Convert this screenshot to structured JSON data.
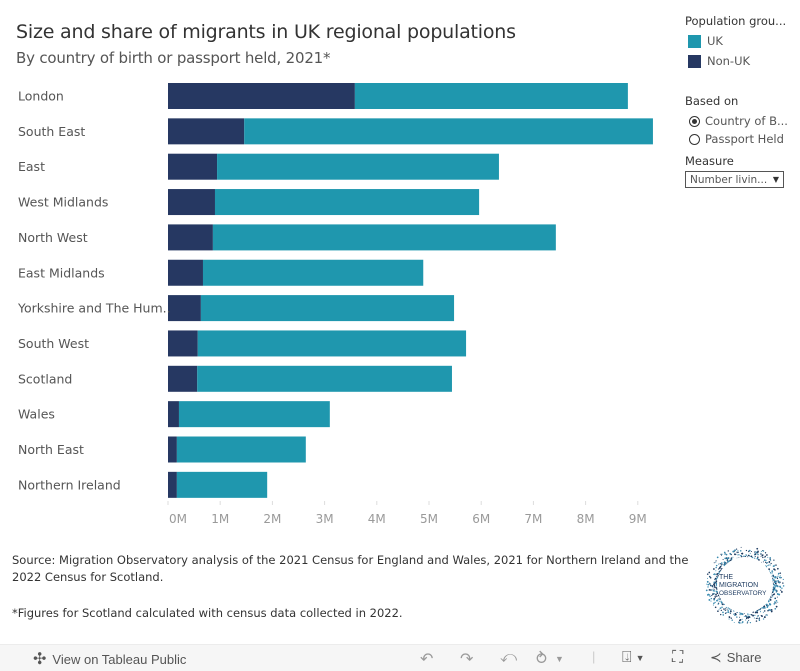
{
  "header": {
    "title": "Size and share of migrants in UK regional populations",
    "subtitle": "By country of birth or passport held, 2021*"
  },
  "legend": {
    "title": "Population grou...",
    "items": [
      {
        "label": "UK",
        "color": "#1f97ae"
      },
      {
        "label": "Non-UK",
        "color": "#263862"
      }
    ]
  },
  "based_on": {
    "title": "Based on",
    "options": [
      {
        "label": "Country of B...",
        "selected": true
      },
      {
        "label": "Passport Held",
        "selected": false
      }
    ]
  },
  "measure": {
    "title": "Measure",
    "selected": "Number livin..."
  },
  "chart_data": {
    "type": "bar",
    "orientation": "horizontal",
    "stacked": true,
    "title": "Size and share of migrants in UK regional populations",
    "subtitle": "By country of birth or passport held, 2021*",
    "xlabel": "",
    "ylabel": "",
    "xlim": [
      0,
      9.3
    ],
    "x_ticks": [
      "0M",
      "1M",
      "2M",
      "3M",
      "4M",
      "5M",
      "6M",
      "7M",
      "8M",
      "9M"
    ],
    "x_tick_values": [
      0,
      1,
      2,
      3,
      4,
      5,
      6,
      7,
      8,
      9
    ],
    "units": "millions",
    "grid": false,
    "legend_position": "right",
    "categories": [
      "London",
      "South East",
      "East",
      "West Midlands",
      "North West",
      "East Midlands",
      "Yorkshire and The Hum..",
      "South West",
      "Scotland",
      "Wales",
      "North East",
      "Northern Ireland"
    ],
    "series": [
      {
        "name": "Non-UK",
        "color": "#263862",
        "values": [
          3.58,
          1.46,
          0.94,
          0.9,
          0.86,
          0.67,
          0.63,
          0.57,
          0.56,
          0.21,
          0.17,
          0.17
        ]
      },
      {
        "name": "UK",
        "color": "#1f97ae",
        "values": [
          5.23,
          7.83,
          5.4,
          5.06,
          6.57,
          4.22,
          4.85,
          5.14,
          4.88,
          2.89,
          2.47,
          1.73
        ]
      }
    ]
  },
  "footer": {
    "source": "Source: Migration Observatory analysis of the 2021 Census for England and Wales, 2021 for Northern Ireland and the 2022 Census for Scotland.",
    "note": "*Figures for Scotland calculated with census data collected in 2022.",
    "logo_lines": [
      "THE",
      "MIGRATION",
      "OBSERVATORY"
    ]
  },
  "toolbar": {
    "view_label": "View on Tableau Public",
    "share_label": "Share",
    "icons": [
      "tableau-logo-icon",
      "undo-icon",
      "redo-icon",
      "revert-icon",
      "refresh-icon",
      "download-icon",
      "fullscreen-icon",
      "share-icon"
    ]
  }
}
